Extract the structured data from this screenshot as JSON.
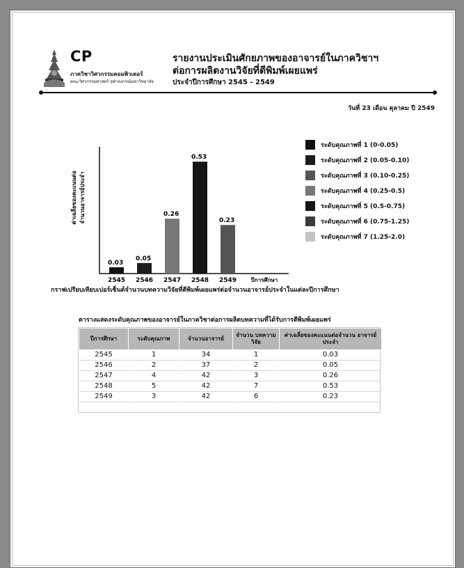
{
  "header": {
    "logo_text": "CP",
    "department": "ภาควิชาวิศวกรรมคอมพิวเตอร์",
    "faculty": "คณะวิศวกรรมศาสตร์ จุฬาลงกรณ์มหาวิทยาลัย",
    "title_line1": "รายงานประเมินศักยภาพของอาจารย์ในภาควิชาฯ",
    "title_line2": "ต่อการผลิตงานวิจัยที่ตีพิมพ์เผยแพร่",
    "title_line3": "ประจำปีการศึกษา 2545 - 2549",
    "date": "วันที่ 23 เดือน ตุลาคม ปี 2549"
  },
  "chart_data": {
    "type": "bar",
    "categories": [
      "2545",
      "2546",
      "2547",
      "2548",
      "2549"
    ],
    "values": [
      0.03,
      0.05,
      0.26,
      0.53,
      0.23
    ],
    "value_labels": [
      "0.03",
      "0.05",
      "0.26",
      "0.53",
      "0.23"
    ],
    "bar_levels": [
      1,
      2,
      4,
      5,
      3
    ],
    "xlabel": "ปีการศึกษา",
    "ylabel_line1": "ค่าเฉลี่ยของคะแนนต่อ",
    "ylabel_line2": "จำนวนอาจารย์ประจำ",
    "ylim": [
      0,
      0.6
    ],
    "grid": false,
    "legend_placement": "right",
    "caption": "กราฟเปรียบเทียบเปอร์เซ็นต์จำนวนบทความวิจัยที่ตีพิมพ์เผยแพร่ต่อจำนวนอาจารย์ประจำในแต่ละปีการศึกษา",
    "legend": [
      {
        "label": "ระดับคุณภาพที่ 1 (0-0.05)",
        "color": "#111111"
      },
      {
        "label": "ระดับคุณภาพที่ 2 (0.05-0.10)",
        "color": "#1c1c1c"
      },
      {
        "label": "ระดับคุณภาพที่ 3 (0.10-0.25)",
        "color": "#555555"
      },
      {
        "label": "ระดับคุณภาพที่ 4 (0.25-0.5)",
        "color": "#777777"
      },
      {
        "label": "ระดับคุณภาพที่ 5 (0.5-0.75)",
        "color": "#151515"
      },
      {
        "label": "ระดับคุณภาพที่ 6 (0.75-1.25)",
        "color": "#3a3a3a"
      },
      {
        "label": "ระดับคุณภาพที่ 7 (1.25-2.0)",
        "color": "#c4c4c4"
      }
    ]
  },
  "table": {
    "caption": "ตารางแสดงระดับคุณภาพของอาจารย์ในภาควิชาต่อการผลิตบทความที่ได้รับการตีพิมพ์เผยแพร่",
    "headers": [
      "ปีการศึกษา",
      "ระดับคุณภาพ",
      "จำนวนอาจารย์",
      "จำนวน บทความวิจัย",
      "ค่าเฉลี่ยของคะแนนต่อจำนวน อาจารย์ประจำ"
    ],
    "rows": [
      [
        "2545",
        "1",
        "34",
        "1",
        "0.03"
      ],
      [
        "2546",
        "2",
        "37",
        "2",
        "0.05"
      ],
      [
        "2547",
        "4",
        "42",
        "3",
        "0.26"
      ],
      [
        "2548",
        "5",
        "42",
        "7",
        "0.53"
      ],
      [
        "2549",
        "3",
        "42",
        "6",
        "0.23"
      ]
    ]
  }
}
